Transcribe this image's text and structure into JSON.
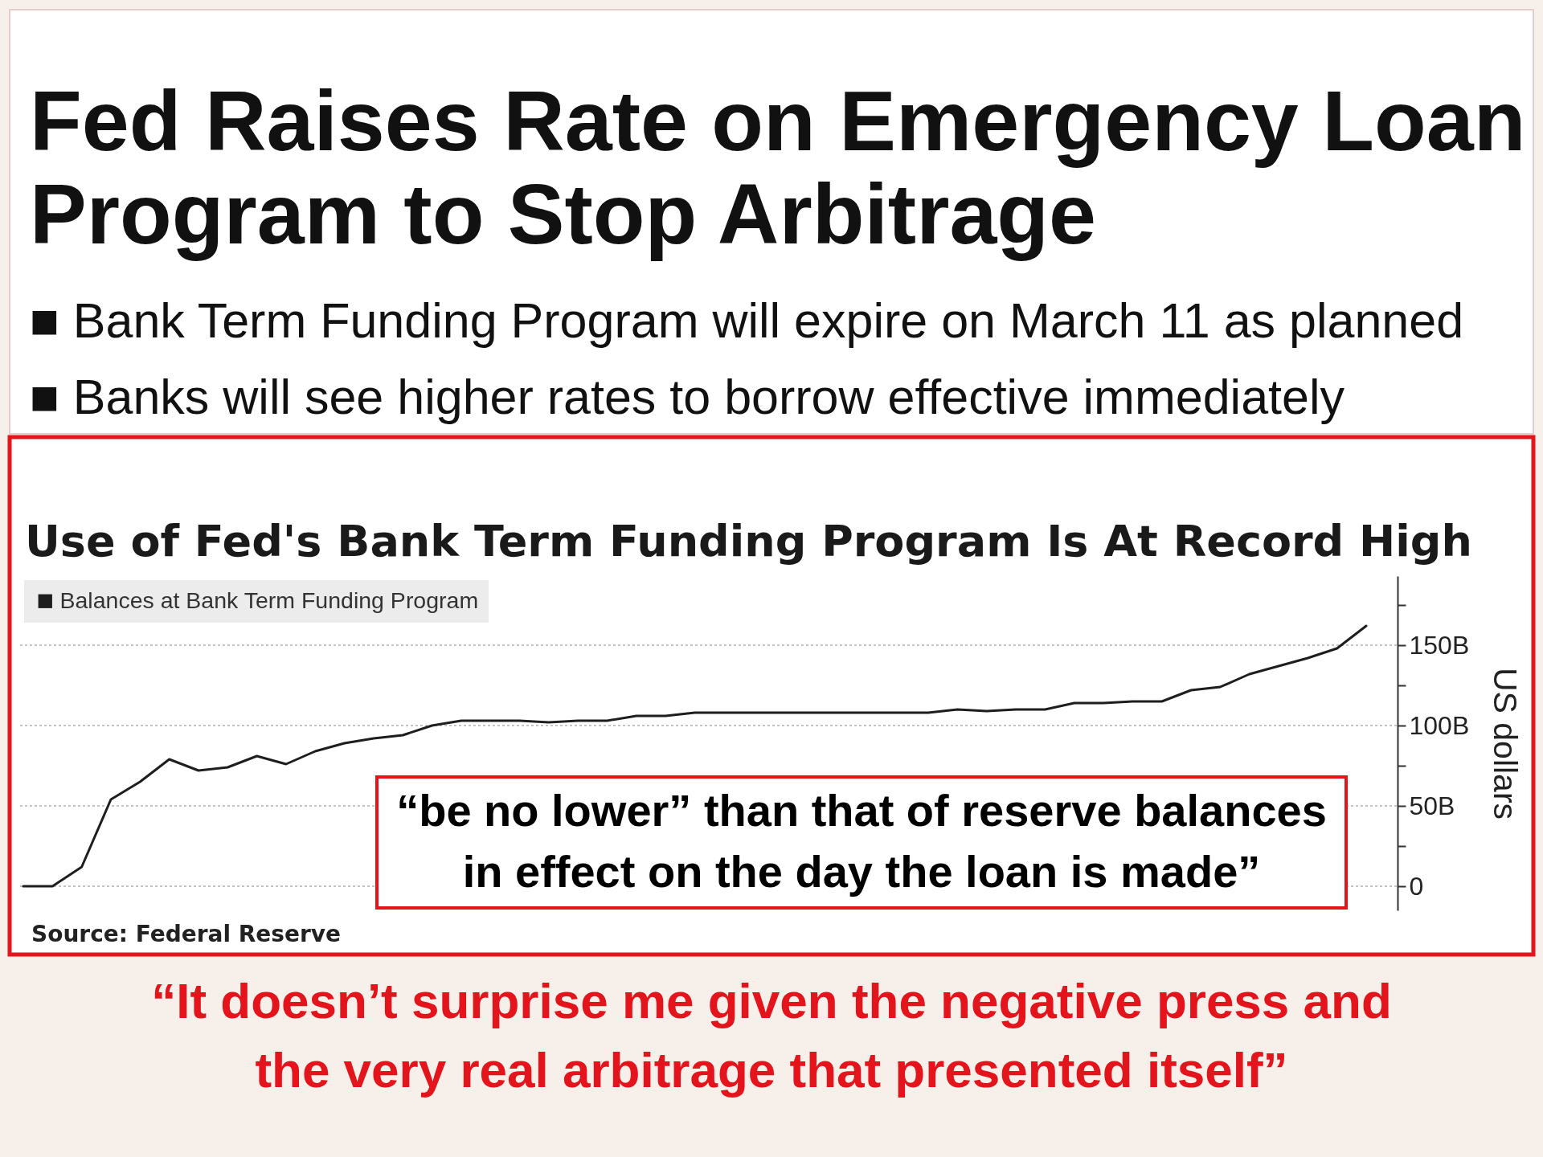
{
  "chart_data": {
    "type": "line",
    "title": "Fed Raises Rate on Emergency Loan\nProgram to Stop Arbitrage",
    "subtitle": "Use of Fed's Bank Term Funding Program Is At Record High",
    "ylabel": "US dollars",
    "categories": [
      null,
      null,
      null,
      null,
      null,
      null,
      null,
      null,
      null,
      null,
      null,
      null,
      null,
      null,
      null,
      null,
      null,
      null,
      null,
      null,
      null,
      null,
      null,
      null,
      null,
      null,
      null,
      null,
      null,
      null,
      null,
      null,
      null,
      null,
      null,
      null,
      null,
      null,
      null,
      null,
      null,
      null,
      null,
      null,
      null,
      null,
      null
    ],
    "series": [
      {
        "name": "Balances at Bank Term Funding Program",
        "color": "#1e1e1e",
        "values": [
          0,
          0,
          12,
          54,
          65,
          79,
          72,
          74,
          81,
          76,
          84,
          89,
          92,
          94,
          100,
          103,
          103,
          103,
          102,
          103,
          103,
          106,
          106,
          108,
          108,
          108,
          108,
          108,
          108,
          108,
          108,
          108,
          110,
          109,
          110,
          110,
          114,
          114,
          115,
          115,
          122,
          124,
          132,
          137,
          142,
          148,
          162
        ]
      }
    ],
    "ylim": [
      -15,
      193
    ],
    "yticks": [
      0,
      {
        "value": 25,
        "label": null
      },
      {
        "value": 50,
        "label": "50B"
      },
      {
        "value": 75,
        "label": null
      },
      {
        "value": 100,
        "label": "100B"
      },
      {
        "value": 125,
        "label": null
      },
      {
        "value": 150,
        "label": "150B"
      },
      {
        "value": 175,
        "label": null
      }
    ],
    "grid": "y",
    "legend": "top left",
    "tick_labels": "y",
    "annotations": [
      "■ Bank Term Funding Program will expire on March 11 as planned",
      "■ Banks will see higher rates to borrow effective immediately",
      "“be no lower” than that of reserve balances\nin effect on the day the loan is made”",
      "Source: Federal Reserve",
      "“It doesn’t surprise me given the negative press and\nthe very real arbitrage that presented itself”"
    ]
  }
}
